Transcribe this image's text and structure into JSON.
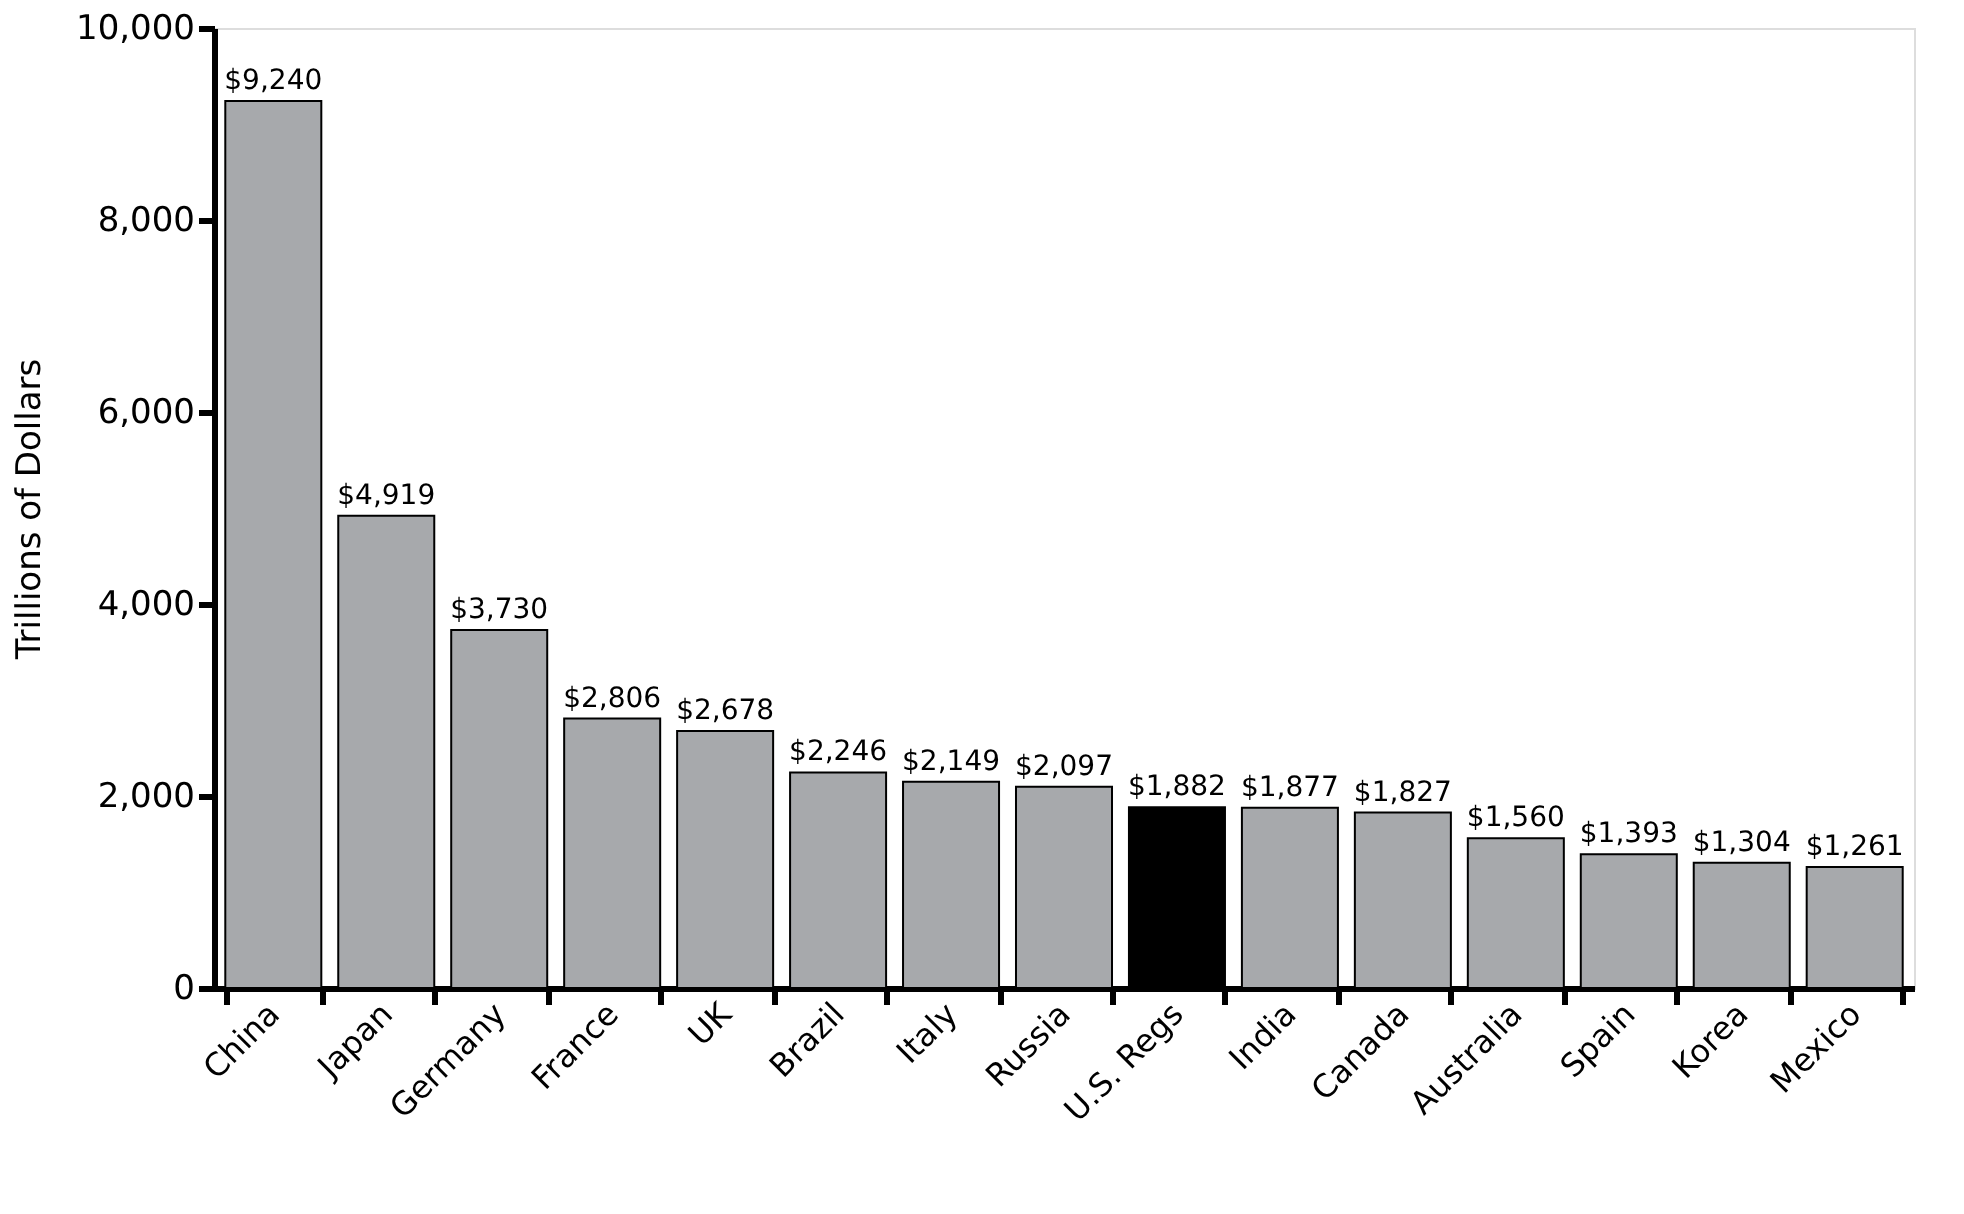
{
  "chart_data": {
    "type": "bar",
    "ylabel": "Trillions of Dollars",
    "categories": [
      "China",
      "Japan",
      "Germany",
      "France",
      "UK",
      "Brazil",
      "Italy",
      "Russia",
      "U.S. Regs",
      "India",
      "Canada",
      "Australia",
      "Spain",
      "Korea",
      "Mexico"
    ],
    "values": [
      9240,
      4919,
      3730,
      2806,
      2678,
      2246,
      2149,
      2097,
      1882,
      1877,
      1827,
      1560,
      1393,
      1304,
      1261
    ],
    "value_labels": [
      "$9,240",
      "$4,919",
      "$3,730",
      "$2,806",
      "$2,678",
      "$2,246",
      "$2,149",
      "$2,097",
      "$1,882",
      "$1,877",
      "$1,827",
      "$1,560",
      "$1,393",
      "$1,304",
      "$1,261"
    ],
    "colors": [
      "#a7a9ac",
      "#a7a9ac",
      "#a7a9ac",
      "#a7a9ac",
      "#a7a9ac",
      "#a7a9ac",
      "#a7a9ac",
      "#a7a9ac",
      "#000000",
      "#a7a9ac",
      "#a7a9ac",
      "#a7a9ac",
      "#a7a9ac",
      "#a7a9ac",
      "#a7a9ac"
    ],
    "ylim": [
      0,
      10000
    ],
    "yticks": [
      0,
      {
        "value": 2000,
        "label": "2,000"
      },
      {
        "value": 4000,
        "label": "4,000"
      },
      {
        "value": 6000,
        "label": "6,000"
      },
      {
        "value": 8000,
        "label": "8,000"
      },
      {
        "value": 10000,
        "label": "10,000"
      }
    ],
    "grid": false
  }
}
